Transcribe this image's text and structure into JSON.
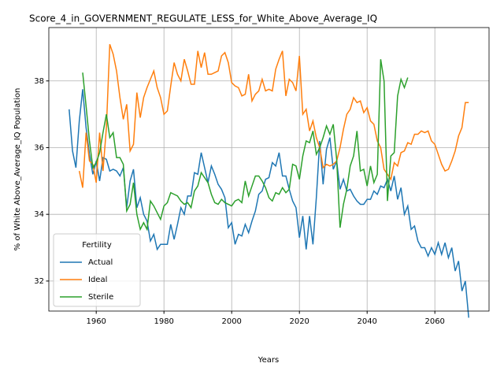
{
  "chart_data": {
    "type": "line",
    "title": "Score_4_in_GOVERNMENT_REGULATE_LESS_for_White_Above_Average_IQ",
    "x_label": "Years",
    "y_label": "% of White Above_Average_IQ Population",
    "x": [
      1952,
      1953,
      1954,
      1955,
      1956,
      1957,
      1958,
      1959,
      1960,
      1961,
      1962,
      1963,
      1964,
      1965,
      1966,
      1967,
      1968,
      1969,
      1970,
      1971,
      1972,
      1973,
      1974,
      1975,
      1976,
      1977,
      1978,
      1979,
      1980,
      1981,
      1982,
      1983,
      1984,
      1985,
      1986,
      1987,
      1988,
      1989,
      1990,
      1991,
      1992,
      1993,
      1994,
      1995,
      1996,
      1997,
      1998,
      1999,
      2000,
      2001,
      2002,
      2003,
      2004,
      2005,
      2006,
      2007,
      2008,
      2009,
      2010,
      2011,
      2012,
      2013,
      2014,
      2015,
      2016,
      2017,
      2018,
      2019,
      2020,
      2021,
      2022,
      2023,
      2024,
      2025,
      2026,
      2027,
      2028,
      2029,
      2030,
      2031,
      2032,
      2033,
      2034,
      2035,
      2036,
      2037,
      2038,
      2039,
      2040,
      2041,
      2042,
      2043,
      2044,
      2045,
      2046,
      2047,
      2048,
      2049,
      2050,
      2051,
      2052,
      2053,
      2054,
      2055,
      2056,
      2057,
      2058,
      2059,
      2060,
      2061,
      2062,
      2063,
      2064,
      2065,
      2066,
      2067,
      2068,
      2069,
      2070
    ],
    "series": [
      {
        "name": "Actual",
        "color": "#1f77b4",
        "values": [
          37.15,
          35.9,
          35.4,
          36.8,
          37.75,
          36.6,
          35.8,
          35.2,
          35.6,
          35.0,
          35.7,
          35.65,
          35.3,
          35.35,
          35.3,
          35.15,
          35.4,
          34.2,
          35.0,
          35.35,
          34.2,
          34.5,
          34.0,
          33.8,
          33.2,
          33.4,
          32.95,
          33.1,
          33.1,
          33.1,
          33.7,
          33.25,
          33.7,
          34.2,
          34.0,
          34.55,
          34.55,
          35.25,
          35.2,
          35.85,
          35.4,
          34.95,
          35.45,
          35.2,
          34.9,
          34.75,
          34.5,
          33.6,
          33.75,
          33.1,
          33.4,
          33.35,
          33.7,
          33.45,
          33.8,
          34.1,
          34.6,
          34.7,
          35.05,
          35.1,
          35.55,
          35.45,
          35.85,
          35.15,
          35.15,
          34.75,
          34.4,
          34.2,
          33.3,
          33.95,
          32.95,
          33.95,
          33.1,
          34.5,
          36.2,
          34.9,
          35.95,
          36.3,
          35.35,
          35.6,
          34.75,
          35.05,
          34.7,
          34.75,
          34.55,
          34.4,
          34.3,
          34.3,
          34.45,
          34.45,
          34.7,
          34.6,
          34.85,
          34.8,
          35.05,
          34.7,
          35.15,
          34.45,
          34.8,
          34.0,
          34.25,
          33.55,
          33.65,
          33.2,
          33.0,
          33.0,
          32.75,
          33.0,
          32.8,
          33.15,
          32.8,
          33.15,
          32.7,
          33.0,
          32.3,
          32.6,
          31.7,
          32.0,
          30.9
        ]
      },
      {
        "name": "Ideal",
        "color": "#ff7f0e",
        "values": [
          null,
          null,
          null,
          35.3,
          34.8,
          36.45,
          35.6,
          35.5,
          34.95,
          36.45,
          35.3,
          36.6,
          39.1,
          38.8,
          38.3,
          37.5,
          36.85,
          37.3,
          35.9,
          36.1,
          37.65,
          36.9,
          37.5,
          37.8,
          38.05,
          38.3,
          37.8,
          37.5,
          37.0,
          37.1,
          37.85,
          38.55,
          38.2,
          38.0,
          38.65,
          38.3,
          37.9,
          37.9,
          38.9,
          38.4,
          38.85,
          38.2,
          38.2,
          38.25,
          38.3,
          38.75,
          38.85,
          38.55,
          37.95,
          37.85,
          37.8,
          37.55,
          37.6,
          38.2,
          37.4,
          37.6,
          37.7,
          38.05,
          37.7,
          37.75,
          37.7,
          38.35,
          38.65,
          38.9,
          37.55,
          38.05,
          37.95,
          37.7,
          38.75,
          37.0,
          37.15,
          36.5,
          36.8,
          36.3,
          36.0,
          35.4,
          35.5,
          35.45,
          35.5,
          35.6,
          36.0,
          36.55,
          37.0,
          37.15,
          37.5,
          37.35,
          37.4,
          37.05,
          37.2,
          36.8,
          36.7,
          36.2,
          36.0,
          35.35,
          35.2,
          35.05,
          35.55,
          35.45,
          35.85,
          35.9,
          36.15,
          36.1,
          36.4,
          36.4,
          36.5,
          36.45,
          36.5,
          36.2,
          36.1,
          35.8,
          35.5,
          35.3,
          35.35,
          35.6,
          35.9,
          36.35,
          36.6,
          37.35,
          37.35
        ]
      },
      {
        "name": "Sterile",
        "color": "#2ca02c",
        "values": [
          null,
          null,
          null,
          null,
          38.25,
          37.25,
          36.2,
          35.4,
          35.55,
          35.85,
          36.45,
          37.0,
          36.3,
          36.45,
          35.7,
          35.7,
          35.5,
          34.1,
          34.3,
          34.95,
          34.0,
          33.55,
          33.75,
          33.55,
          34.4,
          34.25,
          34.05,
          33.85,
          34.25,
          34.35,
          34.65,
          34.6,
          34.55,
          34.4,
          34.3,
          34.35,
          34.2,
          34.7,
          34.85,
          35.25,
          35.1,
          34.95,
          34.6,
          34.35,
          34.3,
          34.45,
          34.35,
          34.3,
          34.25,
          34.4,
          34.45,
          34.35,
          35.0,
          34.55,
          34.85,
          35.15,
          35.15,
          35.0,
          34.8,
          34.5,
          34.4,
          34.65,
          34.6,
          34.8,
          34.65,
          34.75,
          35.5,
          35.45,
          35.05,
          35.75,
          36.2,
          36.15,
          36.5,
          35.8,
          36.0,
          36.3,
          36.65,
          36.4,
          36.7,
          35.65,
          33.6,
          34.3,
          34.75,
          35.45,
          35.75,
          36.5,
          35.3,
          35.35,
          34.85,
          35.45,
          34.95,
          35.2,
          38.65,
          38.0,
          34.4,
          35.75,
          35.85,
          37.55,
          38.05,
          37.8,
          38.1,
          null,
          null,
          null,
          null,
          null,
          null,
          null,
          null,
          null,
          null,
          null,
          null,
          null,
          null,
          null,
          null,
          null,
          null
        ]
      }
    ],
    "xlim": [
      1946,
      2076
    ],
    "ylim": [
      31.1,
      39.6
    ],
    "xticks": [
      1960,
      1980,
      2000,
      2020,
      2040,
      2060
    ],
    "yticks": [
      32,
      34,
      36,
      38
    ],
    "grid": true,
    "legend": {
      "title": "Fertility",
      "loc": "lower left"
    }
  }
}
